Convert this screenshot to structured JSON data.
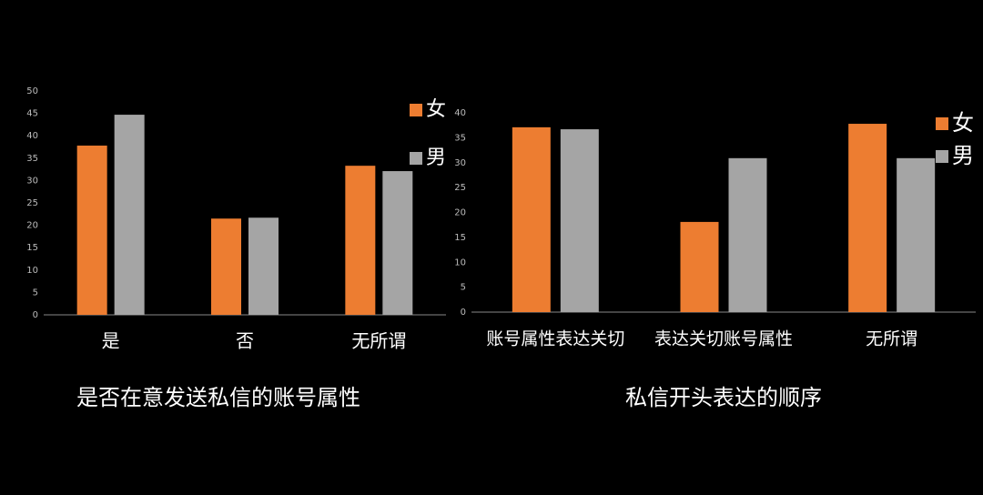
{
  "chart_data": [
    {
      "type": "bar",
      "title": "是否在意发送私信的账号属性",
      "categories": [
        "是",
        "否",
        "无所谓"
      ],
      "series": [
        {
          "name": "女",
          "color": "#ed7d31",
          "values": [
            37.8,
            21.5,
            33.3
          ]
        },
        {
          "name": "男",
          "color": "#a5a5a5",
          "values": [
            44.7,
            21.7,
            32.1
          ]
        }
      ],
      "ylim": [
        0,
        50
      ],
      "yticks": [
        0,
        5,
        10,
        15,
        20,
        25,
        30,
        35,
        40,
        45,
        50
      ],
      "grid": false,
      "legend": "right"
    },
    {
      "type": "bar",
      "title": "私信开头表达的顺序",
      "categories": [
        "账号属性表达关切",
        "表达关切账号属性",
        "无所谓"
      ],
      "series": [
        {
          "name": "女",
          "color": "#ed7d31",
          "values": [
            37.1,
            18.1,
            37.8
          ]
        },
        {
          "name": "男",
          "color": "#a5a5a5",
          "values": [
            36.7,
            30.9,
            30.9
          ]
        }
      ],
      "ylim": [
        0,
        40
      ],
      "yticks": [
        0,
        5,
        10,
        15,
        20,
        25,
        30,
        35,
        40
      ],
      "grid": false,
      "legend": "right"
    }
  ]
}
